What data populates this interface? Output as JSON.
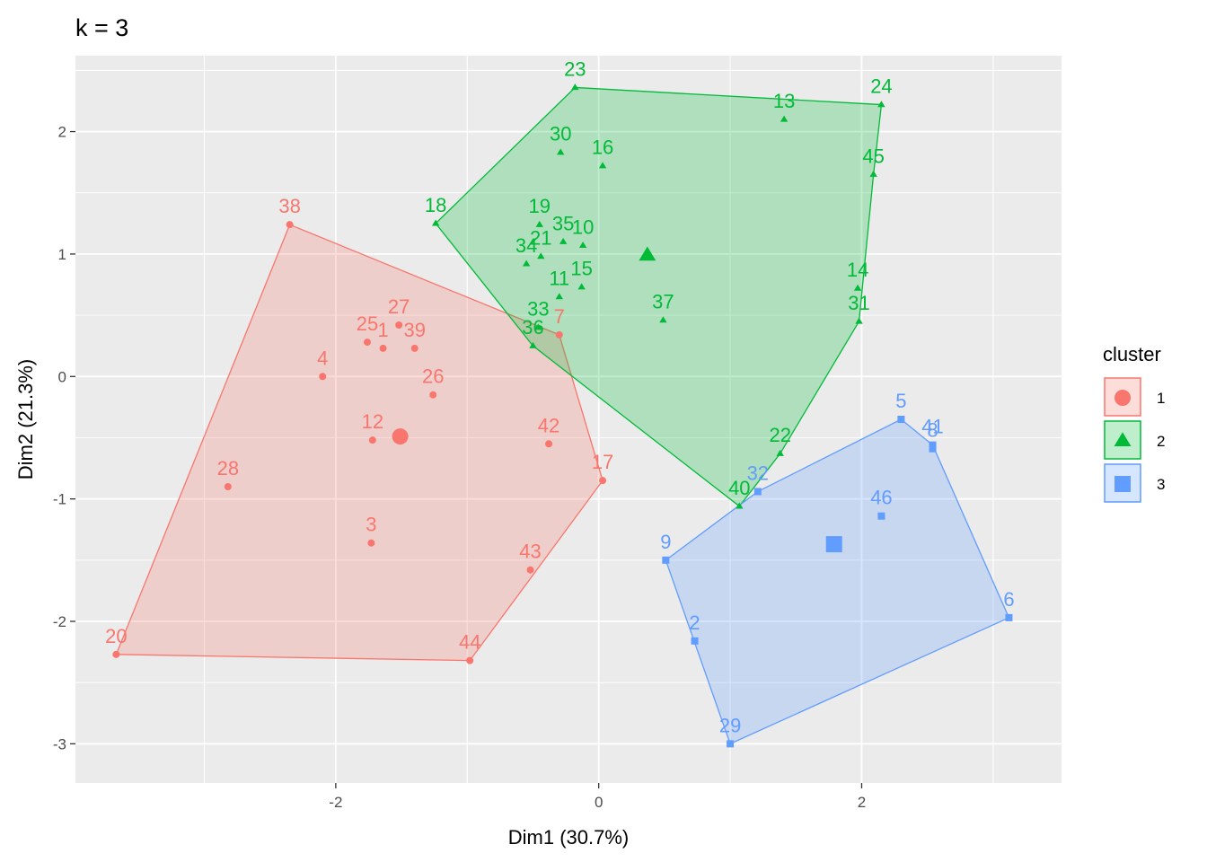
{
  "chart_data": {
    "type": "scatter",
    "title": "k = 3",
    "xlabel": "Dim1 (30.7%)",
    "ylabel": "Dim2 (21.3%)",
    "xlim": [
      -3.98,
      3.52
    ],
    "ylim": [
      -3.32,
      2.62
    ],
    "x_ticks": [
      -2,
      0,
      2
    ],
    "y_ticks": [
      -3,
      -2,
      -1,
      0,
      1,
      2
    ],
    "x_tick_labels": [
      "-2",
      "0",
      "2"
    ],
    "y_tick_labels": [
      "-3",
      "-2",
      "-1",
      "0",
      "1",
      "2"
    ],
    "grid": true,
    "legend": {
      "title": "cluster",
      "position": "right",
      "entries": [
        "1",
        "2",
        "3"
      ]
    },
    "series": [
      {
        "name": "1",
        "color": "#F8766D",
        "marker": "circle",
        "points": [
          {
            "label": "38",
            "x": -2.35,
            "y": 1.24
          },
          {
            "label": "27",
            "x": -1.52,
            "y": 0.42
          },
          {
            "label": "25",
            "x": -1.76,
            "y": 0.28
          },
          {
            "label": "1",
            "x": -1.64,
            "y": 0.23
          },
          {
            "label": "39",
            "x": -1.4,
            "y": 0.23
          },
          {
            "label": "7",
            "x": -0.3,
            "y": 0.34
          },
          {
            "label": "4",
            "x": -2.1,
            "y": 0.0
          },
          {
            "label": "26",
            "x": -1.26,
            "y": -0.15
          },
          {
            "label": "12",
            "x": -1.72,
            "y": -0.52
          },
          {
            "label": "42",
            "x": -0.38,
            "y": -0.55
          },
          {
            "label": "17",
            "x": 0.03,
            "y": -0.85
          },
          {
            "label": "28",
            "x": -2.82,
            "y": -0.9
          },
          {
            "label": "3",
            "x": -1.73,
            "y": -1.36
          },
          {
            "label": "43",
            "x": -0.52,
            "y": -1.58
          },
          {
            "label": "20",
            "x": -3.67,
            "y": -2.27
          },
          {
            "label": "44",
            "x": -0.98,
            "y": -2.32
          }
        ],
        "center": {
          "x": -1.51,
          "y": -0.49
        },
        "hull": [
          "38",
          "7",
          "17",
          "44",
          "20"
        ]
      },
      {
        "name": "2",
        "color": "#00BA38",
        "marker": "triangle",
        "points": [
          {
            "label": "23",
            "x": -0.18,
            "y": 2.36
          },
          {
            "label": "24",
            "x": 2.15,
            "y": 2.22
          },
          {
            "label": "13",
            "x": 1.41,
            "y": 2.1
          },
          {
            "label": "30",
            "x": -0.29,
            "y": 1.83
          },
          {
            "label": "16",
            "x": 0.03,
            "y": 1.72
          },
          {
            "label": "45",
            "x": 2.09,
            "y": 1.65
          },
          {
            "label": "18",
            "x": -1.24,
            "y": 1.25
          },
          {
            "label": "19",
            "x": -0.45,
            "y": 1.24
          },
          {
            "label": "35",
            "x": -0.27,
            "y": 1.1
          },
          {
            "label": "10",
            "x": -0.12,
            "y": 1.07
          },
          {
            "label": "21",
            "x": -0.44,
            "y": 0.98
          },
          {
            "label": "34",
            "x": -0.55,
            "y": 0.92
          },
          {
            "label": "15",
            "x": -0.13,
            "y": 0.73
          },
          {
            "label": "14",
            "x": 1.97,
            "y": 0.72
          },
          {
            "label": "11",
            "x": -0.3,
            "y": 0.65
          },
          {
            "label": "33",
            "x": -0.46,
            "y": 0.4
          },
          {
            "label": "37",
            "x": 0.49,
            "y": 0.46
          },
          {
            "label": "31",
            "x": 1.98,
            "y": 0.45
          },
          {
            "label": "36",
            "x": -0.5,
            "y": 0.25
          },
          {
            "label": "22",
            "x": 1.38,
            "y": -0.63
          },
          {
            "label": "40",
            "x": 1.07,
            "y": -1.06
          }
        ],
        "center": {
          "x": 0.37,
          "y": 0.99
        },
        "hull": [
          "23",
          "24",
          "45",
          "31",
          "22",
          "40",
          "36",
          "18"
        ]
      },
      {
        "name": "3",
        "color": "#619CFF",
        "marker": "square",
        "points": [
          {
            "label": "5",
            "x": 2.3,
            "y": -0.35
          },
          {
            "label": "41",
            "x": 2.54,
            "y": -0.56
          },
          {
            "label": "8",
            "x": 2.54,
            "y": -0.59
          },
          {
            "label": "32",
            "x": 1.21,
            "y": -0.94
          },
          {
            "label": "46",
            "x": 2.15,
            "y": -1.14
          },
          {
            "label": "9",
            "x": 0.51,
            "y": -1.5
          },
          {
            "label": "6",
            "x": 3.12,
            "y": -1.97
          },
          {
            "label": "2",
            "x": 0.73,
            "y": -2.16
          },
          {
            "label": "29",
            "x": 1.0,
            "y": -3.0
          }
        ],
        "center": {
          "x": 1.79,
          "y": -1.37
        },
        "hull": [
          "5",
          "41",
          "6",
          "29",
          "9",
          "32"
        ]
      }
    ]
  }
}
